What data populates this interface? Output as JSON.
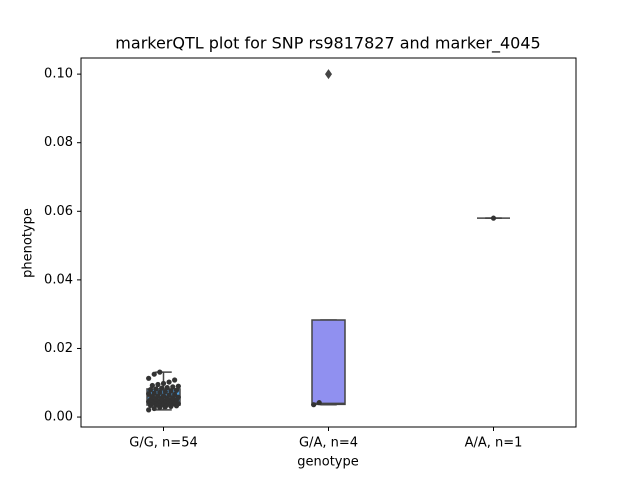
{
  "chart_data": {
    "type": "box",
    "title": "markerQTL plot for SNP rs9817827 and marker_4045",
    "xlabel": "genotype",
    "ylabel": "phenotype",
    "categories": [
      "G/G, n=54",
      "G/A, n=4",
      "A/A, n=1"
    ],
    "ylim": [
      -0.0029,
      0.1047
    ],
    "yticks": [
      {
        "value": 0,
        "label": "0.00"
      },
      {
        "value": 0.02,
        "label": "0.02"
      },
      {
        "value": 0.04,
        "label": "0.04"
      },
      {
        "value": 0.06,
        "label": "0.06"
      },
      {
        "value": 0.08,
        "label": "0.08"
      },
      {
        "value": 0.1,
        "label": "0.10"
      }
    ],
    "point_color": "#333333",
    "boxes": [
      {
        "color": "#4c9ee0",
        "whislo": 0.0021,
        "q1": 0.0035,
        "median": 0.006,
        "q3": 0.0082,
        "whishi": 0.0131,
        "fliers": [],
        "points": [
          0.0021,
          0.0025,
          0.0028,
          0.003,
          0.0031,
          0.0033,
          0.0034,
          0.0035,
          0.0036,
          0.0037,
          0.0038,
          0.0039,
          0.004,
          0.0041,
          0.0042,
          0.0043,
          0.0044,
          0.0045,
          0.0046,
          0.0047,
          0.0048,
          0.0049,
          0.005,
          0.0051,
          0.0052,
          0.0053,
          0.0055,
          0.0056,
          0.0058,
          0.006,
          0.0061,
          0.0062,
          0.0064,
          0.0066,
          0.0068,
          0.007,
          0.0072,
          0.0074,
          0.0076,
          0.0078,
          0.008,
          0.0082,
          0.0084,
          0.0086,
          0.0088,
          0.009,
          0.0092,
          0.0095,
          0.0098,
          0.0102,
          0.0108,
          0.0113,
          0.0125,
          0.0131
        ]
      },
      {
        "color": "#9090f0",
        "whislo": 0.0036,
        "q1": 0.0037,
        "median": 0.004,
        "q3": 0.0283,
        "whishi": 0.0283,
        "fliers": [
          0.1
        ],
        "points": [
          0.0036,
          0.0042
        ]
      },
      {
        "color": "#d98c4c",
        "whislo": 0.058,
        "q1": 0.058,
        "median": 0.058,
        "q3": 0.058,
        "whishi": 0.058,
        "fliers": [],
        "points": [
          0.058
        ]
      }
    ]
  }
}
